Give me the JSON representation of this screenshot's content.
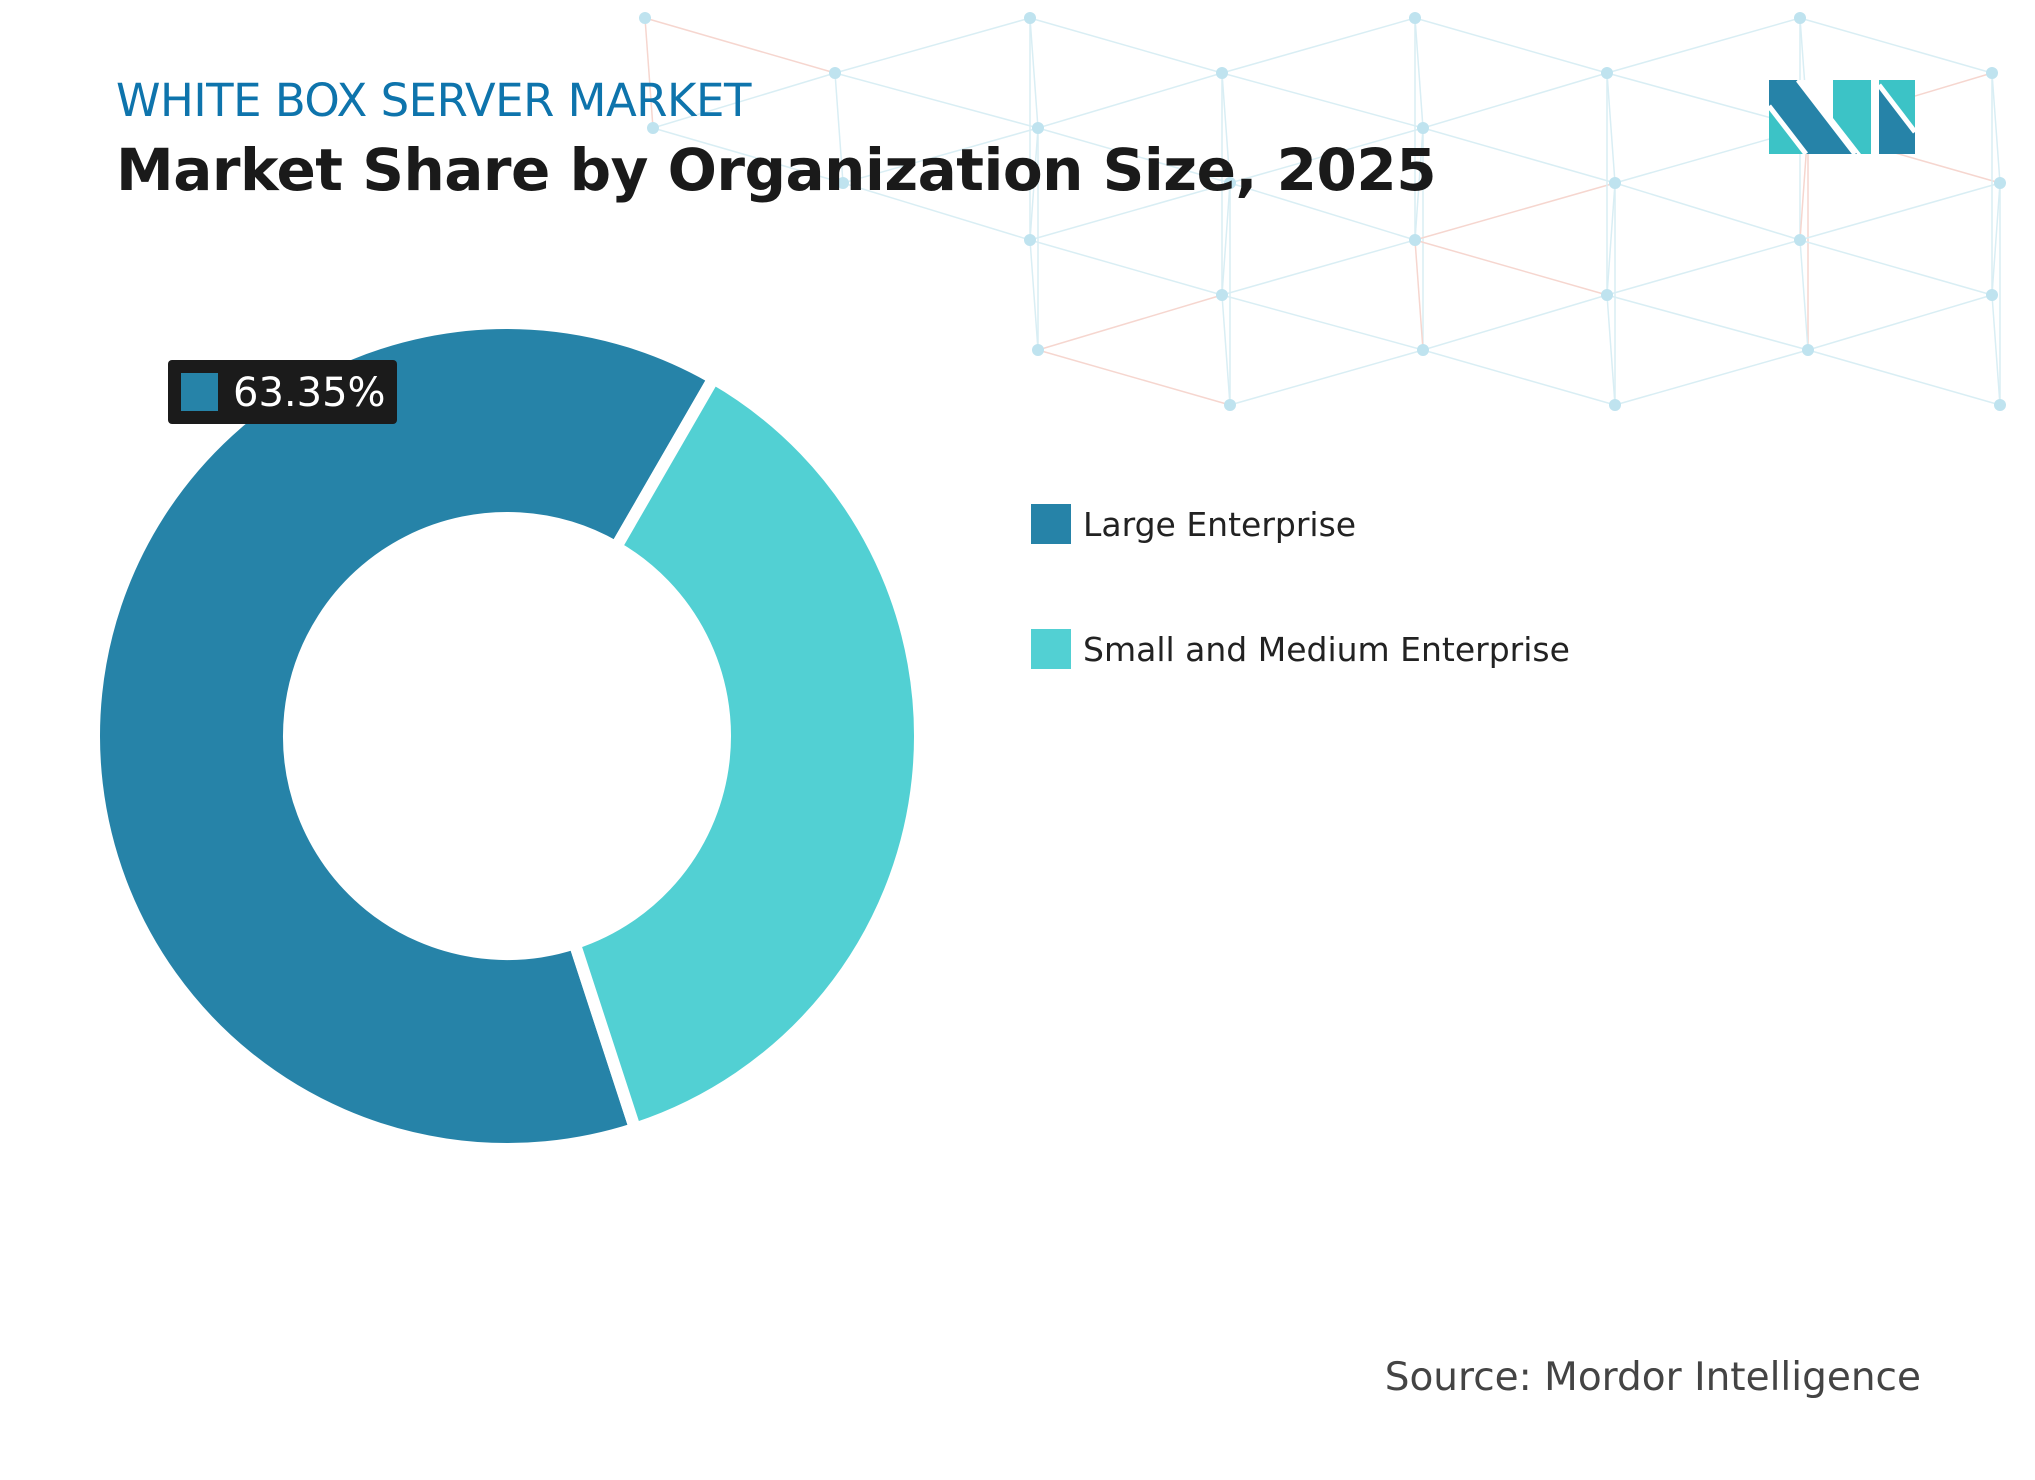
{
  "header": {
    "subtitle": "WHITE BOX SERVER MARKET",
    "title": "Market Share by Organization Size, 2025"
  },
  "logo": {
    "text": "MI",
    "colors": [
      "#2683a8",
      "#3cc3c6"
    ]
  },
  "chart_data": {
    "type": "pie",
    "variant": "donut",
    "title": "Market Share by Organization Size, 2025",
    "categories": [
      "Large Enterprise",
      "Small and Medium Enterprise"
    ],
    "values": [
      63.35,
      36.65
    ],
    "unit": "%",
    "colors": [
      "#2683a8",
      "#52d0d3"
    ],
    "data_labels": [
      {
        "category": "Large Enterprise",
        "text": "63.35%"
      }
    ],
    "legend_placement": "right"
  },
  "legend": {
    "items": [
      {
        "label": "Large Enterprise",
        "color": "#2683a8"
      },
      {
        "label": "Small and Medium Enterprise",
        "color": "#52d0d3"
      }
    ]
  },
  "footer": {
    "source": "Source: Mordor Intelligence"
  }
}
